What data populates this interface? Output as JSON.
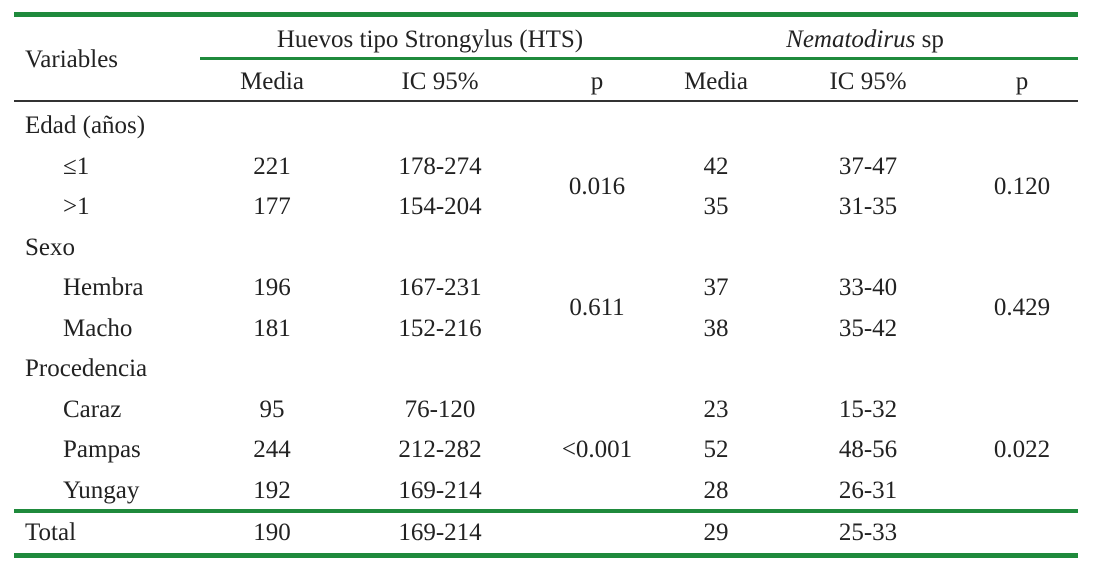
{
  "table": {
    "header": {
      "variables": "Variables",
      "groups": [
        {
          "label": "Huevos tipo Strongylus (HTS)"
        },
        {
          "label_italic": "Nematodirus",
          "label": "sp"
        }
      ],
      "columns": [
        "Media",
        "IC 95%",
        "p",
        "Media",
        "IC 95%",
        "p"
      ]
    },
    "sections": [
      {
        "label": "Edad (años)",
        "hts_p": "0.016",
        "nem_p": "0.120",
        "rows": [
          [
            "≤1",
            "221",
            "178-274",
            "42",
            "37-47"
          ],
          [
            ">1",
            "177",
            "154-204",
            "35",
            "31-35"
          ]
        ]
      },
      {
        "label": "Sexo",
        "hts_p": "0.611",
        "nem_p": "0.429",
        "rows": [
          [
            "Hembra",
            "196",
            "167-231",
            "37",
            "33-40"
          ],
          [
            "Macho",
            "181",
            "152-216",
            "38",
            "35-42"
          ]
        ]
      },
      {
        "label": "Procedencia",
        "hts_p": "<0.001",
        "nem_p": "0.022",
        "rows": [
          [
            "Caraz",
            "95",
            "76-120",
            "23",
            "15-32"
          ],
          [
            "Pampas",
            "244",
            "212-282",
            "52",
            "48-56"
          ],
          [
            "Yungay",
            "192",
            "169-214",
            "28",
            "26-31"
          ]
        ]
      }
    ],
    "total": [
      "Total",
      "190",
      "169-214",
      "29",
      "25-33"
    ]
  }
}
